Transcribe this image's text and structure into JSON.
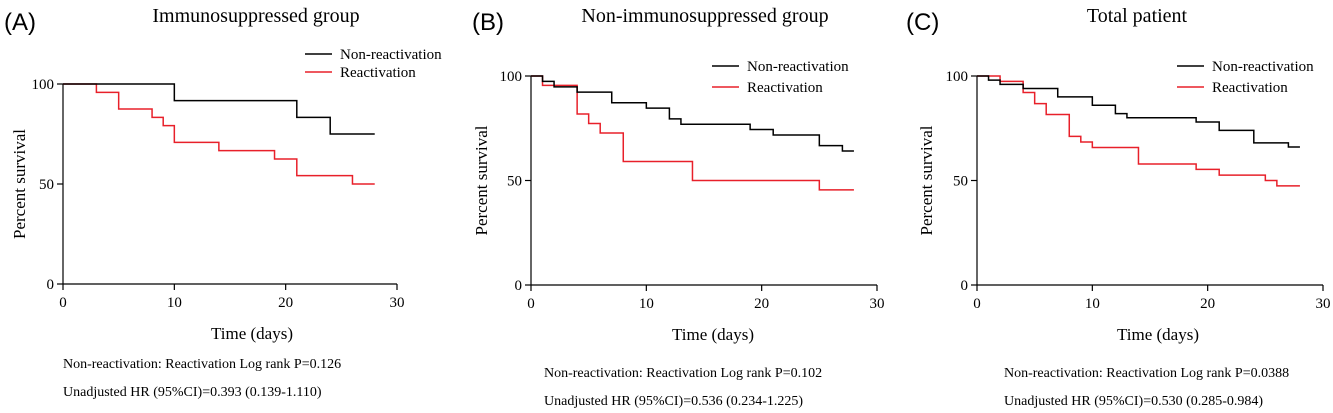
{
  "chart_data": [
    {
      "type": "line",
      "panel_label": "(A)",
      "title": "Immunosuppressed group",
      "xlabel": "Time (days)",
      "ylabel": "Percent survival",
      "xlim": [
        0,
        30
      ],
      "ylim": [
        0,
        100
      ],
      "xticks": [
        "0",
        "10",
        "20",
        "30"
      ],
      "yticks": [
        "0",
        "50",
        "100"
      ],
      "step": true,
      "grid": false,
      "legend_position": "top-right",
      "series": [
        {
          "name": "Non-reactivation",
          "color": "#000000",
          "points": [
            [
              0,
              100
            ],
            [
              10,
              91.7
            ],
            [
              21,
              83.3
            ],
            [
              24,
              75
            ],
            [
              28,
              75
            ]
          ]
        },
        {
          "name": "Reactivation",
          "color": "#e8202a",
          "points": [
            [
              0,
              100
            ],
            [
              3,
              95.8
            ],
            [
              5,
              87.5
            ],
            [
              8,
              83.3
            ],
            [
              9,
              79.2
            ],
            [
              10,
              70.8
            ],
            [
              14,
              66.7
            ],
            [
              19,
              62.5
            ],
            [
              21,
              54.2
            ],
            [
              26,
              50
            ],
            [
              28,
              50
            ]
          ]
        }
      ],
      "stats": [
        "Non-reactivation: Reactivation Log rank P=0.126",
        "Unadjusted HR (95%CI)=0.393 (0.139-1.110)"
      ]
    },
    {
      "type": "line",
      "panel_label": "(B)",
      "title": "Non-immunosuppressed group",
      "xlabel": "Time (days)",
      "ylabel": "Percent survival",
      "xlim": [
        0,
        30
      ],
      "ylim": [
        0,
        100
      ],
      "xticks": [
        "0",
        "10",
        "20",
        "30"
      ],
      "yticks": [
        "0",
        "50",
        "100"
      ],
      "step": true,
      "grid": false,
      "legend_position": "top-right",
      "series": [
        {
          "name": "Non-reactivation",
          "color": "#000000",
          "points": [
            [
              0,
              100
            ],
            [
              1,
              97.4
            ],
            [
              2,
              94.8
            ],
            [
              4,
              92.3
            ],
            [
              7,
              87.2
            ],
            [
              10,
              84.6
            ],
            [
              12,
              79.5
            ],
            [
              13,
              76.9
            ],
            [
              19,
              74.4
            ],
            [
              21,
              71.8
            ],
            [
              25,
              66.7
            ],
            [
              27,
              64.1
            ],
            [
              28,
              64.1
            ]
          ]
        },
        {
          "name": "Reactivation",
          "color": "#e8202a",
          "points": [
            [
              0,
              100
            ],
            [
              1,
              95.5
            ],
            [
              3,
              95.5
            ],
            [
              4,
              81.8
            ],
            [
              5,
              77.3
            ],
            [
              6,
              72.7
            ],
            [
              8,
              59.1
            ],
            [
              14,
              50
            ],
            [
              25,
              45.5
            ],
            [
              28,
              45.5
            ]
          ]
        }
      ],
      "stats": [
        "Non-reactivation: Reactivation Log rank P=0.102",
        "Unadjusted HR (95%CI)=0.536 (0.234-1.225)"
      ]
    },
    {
      "type": "line",
      "panel_label": "(C)",
      "title": "Total patient",
      "xlabel": "Time (days)",
      "ylabel": "Percent survival",
      "xlim": [
        0,
        30
      ],
      "ylim": [
        0,
        100
      ],
      "xticks": [
        "0",
        "10",
        "20",
        "30"
      ],
      "yticks": [
        "0",
        "50",
        "100"
      ],
      "step": true,
      "grid": false,
      "legend_position": "top-right",
      "series": [
        {
          "name": "Non-reactivation",
          "color": "#000000",
          "points": [
            [
              0,
              100
            ],
            [
              1,
              98
            ],
            [
              2,
              96
            ],
            [
              4,
              94
            ],
            [
              7,
              90
            ],
            [
              10,
              86
            ],
            [
              12,
              82
            ],
            [
              13,
              80
            ],
            [
              19,
              78
            ],
            [
              21,
              74
            ],
            [
              24,
              68
            ],
            [
              27,
              66
            ],
            [
              28,
              66
            ]
          ]
        },
        {
          "name": "Reactivation",
          "color": "#e8202a",
          "points": [
            [
              0,
              100
            ],
            [
              2,
              97.4
            ],
            [
              4,
              92.1
            ],
            [
              5,
              86.8
            ],
            [
              6,
              81.6
            ],
            [
              8,
              71.1
            ],
            [
              9,
              68.4
            ],
            [
              10,
              65.8
            ],
            [
              14,
              57.9
            ],
            [
              19,
              55.3
            ],
            [
              21,
              52.6
            ],
            [
              25,
              50
            ],
            [
              26,
              47.4
            ],
            [
              28,
              47.4
            ]
          ]
        }
      ],
      "stats": [
        "Non-reactivation: Reactivation Log rank P=0.0388",
        "Unadjusted HR (95%CI)=0.530 (0.285-0.984)"
      ]
    }
  ]
}
